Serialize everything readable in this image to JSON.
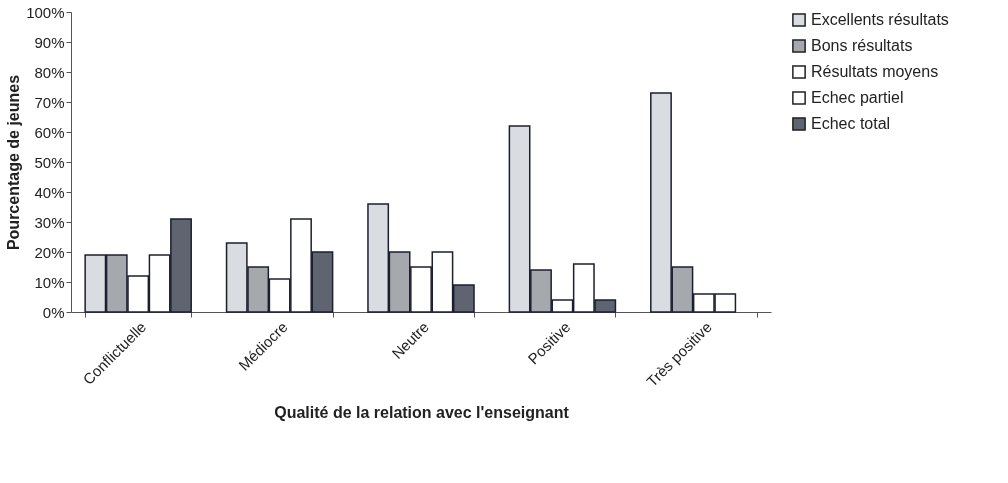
{
  "chart_data": {
    "type": "bar",
    "xlabel": "Qualité de la relation avec l'enseignant",
    "ylabel": "Pourcentage de jeunes",
    "categories": [
      "Conflictuelle",
      "Médiocre",
      "Neutre",
      "Positive",
      "Très positive"
    ],
    "series": [
      {
        "name": "Excellents résultats",
        "color": "#d9dce0",
        "values": [
          19,
          23,
          36,
          62,
          73
        ]
      },
      {
        "name": "Bons résultats",
        "color": "#a5a8ad",
        "values": [
          19,
          15,
          20,
          14,
          15
        ]
      },
      {
        "name": "Résultats moyens",
        "color": "#ffffff",
        "values": [
          12,
          11,
          15,
          4,
          6
        ]
      },
      {
        "name": "Echec partiel",
        "color": "#ffffff",
        "values": [
          19,
          31,
          20,
          16,
          6
        ]
      },
      {
        "name": "Echec total",
        "color": "#5f6470",
        "values": [
          31,
          20,
          9,
          4,
          null
        ]
      }
    ],
    "ylim": [
      0,
      100
    ],
    "yticks": [
      {
        "value": 0,
        "label": "0%"
      },
      {
        "value": 10,
        "label": "10%"
      },
      {
        "value": 20,
        "label": "20%"
      },
      {
        "value": 30,
        "label": "30%"
      },
      {
        "value": 40,
        "label": "40%"
      },
      {
        "value": 50,
        "label": "50%"
      },
      {
        "value": 60,
        "label": "60%"
      },
      {
        "value": 70,
        "label": "70%"
      },
      {
        "value": 80,
        "label": "80%"
      },
      {
        "value": 90,
        "label": "90%"
      },
      {
        "value": 100,
        "label": "100%"
      }
    ],
    "grid": false,
    "legend": "right"
  }
}
